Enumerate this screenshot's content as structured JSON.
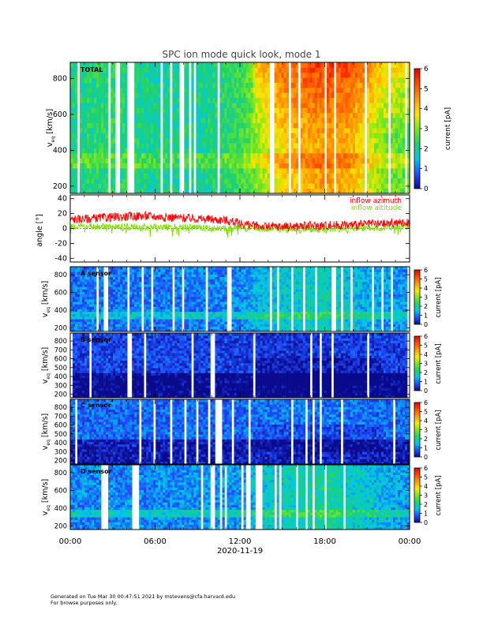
{
  "chart_data": [
    {
      "type": "heatmap",
      "panel_id": "total",
      "title": "SPC ion mode quick look, mode 1",
      "panel_label": "TOTAL",
      "ylabel": "v",
      "ylabel_sub": "eq",
      "ylabel_units": " [km/s]",
      "ylim": [
        160,
        890
      ],
      "yticks": [
        200,
        400,
        600,
        800
      ],
      "colorbar": {
        "label": "current [pA]",
        "range": [
          0,
          6
        ],
        "ticks": [
          0,
          1,
          2,
          3,
          4,
          5,
          6
        ]
      },
      "colorscale": [
        "#0a0a8c",
        "#1f4cff",
        "#00c8e8",
        "#1fd26a",
        "#7ee81a",
        "#ffe600",
        "#ff9a00",
        "#ff4d00",
        "#e60000"
      ],
      "level_profile": [
        {
          "hours": 0,
          "level": 2.1
        },
        {
          "hours": 3,
          "level": 2.3
        },
        {
          "hours": 6,
          "level": 2.0
        },
        {
          "hours": 9,
          "level": 2.0
        },
        {
          "hours": 12,
          "level": 2.4
        },
        {
          "hours": 13.5,
          "level": 3.2
        },
        {
          "hours": 15,
          "level": 3.9
        },
        {
          "hours": 18,
          "level": 4.5
        },
        {
          "hours": 20,
          "level": 4.2
        },
        {
          "hours": 22,
          "level": 3.0
        },
        {
          "hours": 24,
          "level": 2.6
        }
      ]
    },
    {
      "type": "line",
      "panel_id": "angle",
      "ylabel": "angle [°]",
      "ylim": [
        -45,
        45
      ],
      "yticks": [
        -40,
        -20,
        0,
        20,
        40
      ],
      "series": [
        {
          "name": "inflow azimuth",
          "color": "#ff0000",
          "profile": [
            {
              "hours": 0,
              "value": 12
            },
            {
              "hours": 3,
              "value": 15
            },
            {
              "hours": 5,
              "value": 17
            },
            {
              "hours": 7,
              "value": 15
            },
            {
              "hours": 9,
              "value": 13
            },
            {
              "hours": 11,
              "value": 11
            },
            {
              "hours": 12.5,
              "value": 5
            },
            {
              "hours": 14,
              "value": 2
            },
            {
              "hours": 16,
              "value": 3
            },
            {
              "hours": 18,
              "value": 4
            },
            {
              "hours": 20,
              "value": 5
            },
            {
              "hours": 22,
              "value": 6
            },
            {
              "hours": 24,
              "value": 8
            }
          ]
        },
        {
          "name": "inflow altitude",
          "color": "#7fe000",
          "profile": [
            {
              "hours": 0,
              "value": 3
            },
            {
              "hours": 6,
              "value": 2
            },
            {
              "hours": 12,
              "value": 0
            },
            {
              "hours": 18,
              "value": -1
            },
            {
              "hours": 24,
              "value": 2
            }
          ]
        }
      ]
    },
    {
      "type": "heatmap",
      "panel_id": "a",
      "panel_label": "A sensor",
      "ylabel": "v",
      "ylabel_sub": "eq",
      "ylabel_units": " [km/s]",
      "ylim": [
        160,
        890
      ],
      "yticks": [
        200,
        400,
        600,
        800
      ],
      "colorbar": {
        "label": "current [pA]",
        "range": [
          0,
          6
        ],
        "ticks": [
          0,
          1,
          2,
          3,
          4,
          5,
          6
        ]
      },
      "level_profile": [
        {
          "hours": 0,
          "level": 1.0
        },
        {
          "hours": 6,
          "level": 1.0
        },
        {
          "hours": 12,
          "level": 1.1
        },
        {
          "hours": 13.5,
          "level": 1.5
        },
        {
          "hours": 18,
          "level": 1.8
        },
        {
          "hours": 21,
          "level": 1.4
        },
        {
          "hours": 24,
          "level": 1.1
        }
      ]
    },
    {
      "type": "heatmap",
      "panel_id": "b",
      "panel_label": "B sensor",
      "ylabel": "v",
      "ylabel_sub": "eq",
      "ylabel_units": " [km/s]",
      "ylim": [
        160,
        890
      ],
      "yticks": [
        200,
        300,
        400,
        500,
        600,
        700,
        800
      ],
      "colorbar": {
        "label": "current [pA]",
        "range": [
          0,
          6
        ],
        "ticks": [
          0,
          1,
          2,
          3,
          4,
          5,
          6
        ]
      },
      "level_profile": [
        {
          "hours": 0,
          "level": 0.6
        },
        {
          "hours": 6,
          "level": 0.6
        },
        {
          "hours": 12,
          "level": 0.6
        },
        {
          "hours": 14,
          "level": 0.5
        },
        {
          "hours": 18,
          "level": 0.5
        },
        {
          "hours": 24,
          "level": 0.6
        }
      ]
    },
    {
      "type": "heatmap",
      "panel_id": "c",
      "panel_label": "C sensor",
      "ylabel": "v",
      "ylabel_sub": "eq",
      "ylabel_units": " [km/s]",
      "ylim": [
        160,
        890
      ],
      "yticks": [
        200,
        300,
        400,
        500,
        600,
        700,
        800
      ],
      "colorbar": {
        "label": "current [pA]",
        "range": [
          0,
          6
        ],
        "ticks": [
          0,
          1,
          2,
          3,
          4,
          5,
          6
        ]
      },
      "level_profile": [
        {
          "hours": 0,
          "level": 0.9
        },
        {
          "hours": 6,
          "level": 0.9
        },
        {
          "hours": 12,
          "level": 0.9
        },
        {
          "hours": 14,
          "level": 1.0
        },
        {
          "hours": 18,
          "level": 1.0
        },
        {
          "hours": 24,
          "level": 0.9
        }
      ]
    },
    {
      "type": "heatmap",
      "panel_id": "d",
      "panel_label": "D sensor",
      "ylabel": "v",
      "ylabel_sub": "eq",
      "ylabel_units": " [km/s]",
      "ylim": [
        160,
        890
      ],
      "yticks": [
        200,
        400,
        600,
        800
      ],
      "colorbar": {
        "label": "current [pA]",
        "range": [
          0,
          6
        ],
        "ticks": [
          0,
          1,
          2,
          3,
          4,
          5,
          6
        ]
      },
      "level_profile": [
        {
          "hours": 0,
          "level": 1.1
        },
        {
          "hours": 6,
          "level": 1.1
        },
        {
          "hours": 12,
          "level": 1.2
        },
        {
          "hours": 13.5,
          "level": 1.6
        },
        {
          "hours": 18,
          "level": 2.0
        },
        {
          "hours": 21,
          "level": 1.6
        },
        {
          "hours": 24,
          "level": 1.2
        }
      ]
    }
  ],
  "x_axis": {
    "range_hours": [
      0,
      24
    ],
    "tick_hours": [
      0,
      6,
      12,
      18,
      24
    ],
    "tick_labels": [
      "00:00",
      "06:00",
      "12:00",
      "18:00",
      "00:00"
    ],
    "minor_tick_hours": [
      1,
      2,
      3,
      4,
      5,
      7,
      8,
      9,
      10,
      11,
      13,
      14,
      15,
      16,
      17,
      19,
      20,
      21,
      22,
      23
    ],
    "date_label": "2020-11-19"
  },
  "footer": {
    "line1": "Generated on Tue Mar 30 00:47:51 2021 by mstevens@cfa.harvard.edu",
    "line2": "For browse purposes only."
  }
}
